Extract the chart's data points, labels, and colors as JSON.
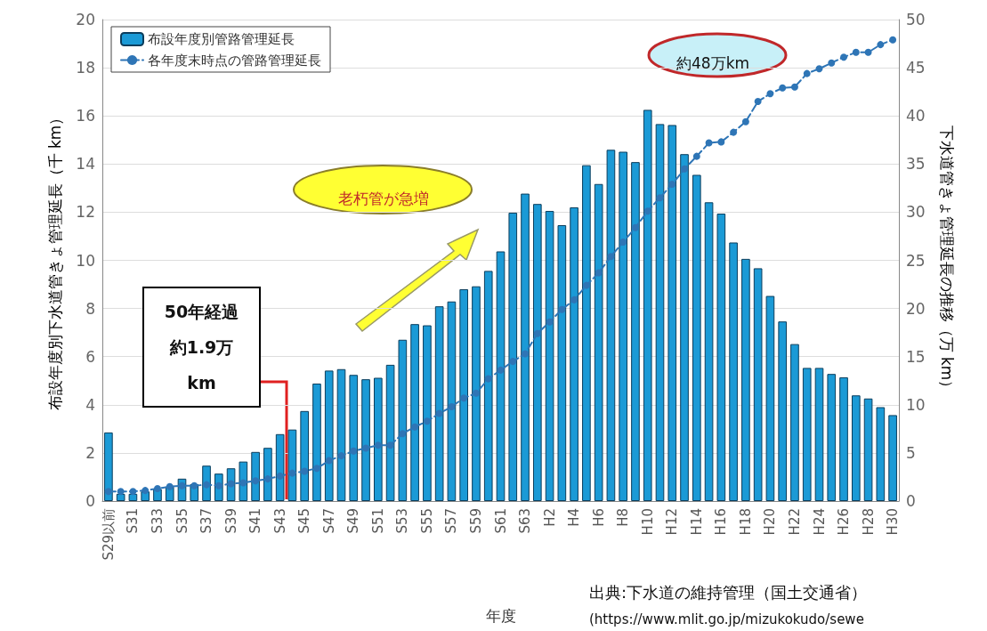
{
  "chart_data": {
    "type": "bar",
    "xlabel": "年度",
    "ylabel": "布設年度別下水道管きょ管理延長（千 km）",
    "y2label": "下水道管きょ管理延長の推移（万 km）",
    "categories": [
      "S29以前",
      null,
      "S31",
      null,
      "S33",
      null,
      "S35",
      null,
      "S37",
      null,
      "S39",
      null,
      "S41",
      null,
      "S43",
      null,
      "S45",
      null,
      "S47",
      null,
      "S49",
      null,
      "S51",
      null,
      "S53",
      null,
      "S55",
      null,
      "S57",
      null,
      "S59",
      null,
      "S61",
      null,
      "S63",
      null,
      "H2",
      null,
      "H4",
      null,
      "H6",
      null,
      "H8",
      null,
      "H10",
      null,
      "H12",
      null,
      "H14",
      null,
      "H16",
      null,
      "H18",
      null,
      "H20",
      null,
      "H22",
      null,
      "H24",
      null,
      "H26",
      null,
      "H28",
      null,
      "H30"
    ],
    "series": [
      {
        "name": "布設年度別管路管理延長",
        "color": "#1b9ad6",
        "values": [
          2.85,
          0.3,
          0.3,
          0.4,
          0.5,
          0.6,
          0.93,
          0.7,
          1.47,
          1.14,
          1.36,
          1.64,
          2.04,
          2.21,
          2.78,
          2.97,
          3.74,
          4.88,
          5.42,
          5.48,
          5.24,
          5.06,
          5.12,
          5.66,
          6.7,
          7.35,
          7.3,
          8.09,
          8.29,
          8.8,
          8.92,
          9.56,
          10.37,
          11.98,
          12.77,
          12.34,
          12.05,
          11.46,
          12.2,
          13.95,
          13.17,
          14.59,
          14.51,
          14.08,
          16.25,
          15.66,
          15.62,
          14.41,
          13.55,
          12.41,
          11.94,
          10.74,
          10.06,
          9.67,
          8.52,
          7.46,
          6.52,
          5.53,
          5.53,
          5.28,
          5.14,
          4.39,
          4.26,
          3.9,
          3.57
        ]
      },
      {
        "name": "各年度末時点の管路管理延長",
        "type": "line",
        "axis": "y2",
        "color": "#2e75b6",
        "marker": "circle",
        "line_style": "dashed",
        "values": [
          1.0,
          1.0,
          1.0,
          1.1,
          1.3,
          1.5,
          1.6,
          1.6,
          1.7,
          1.6,
          1.8,
          1.9,
          2.1,
          2.3,
          2.6,
          2.9,
          3.1,
          3.4,
          4.2,
          4.7,
          5.2,
          5.5,
          5.8,
          5.8,
          7.0,
          7.7,
          8.3,
          9.1,
          9.8,
          10.7,
          11.2,
          12.7,
          13.6,
          14.5,
          15.3,
          17.4,
          18.6,
          19.9,
          20.9,
          22.4,
          23.7,
          25.4,
          26.9,
          28.4,
          30.1,
          31.5,
          32.9,
          34.5,
          35.8,
          37.2,
          37.3,
          38.3,
          39.4,
          41.5,
          42.3,
          42.9,
          43.0,
          44.4,
          44.9,
          45.5,
          46.1,
          46.6,
          46.6,
          47.4,
          47.9
        ]
      }
    ],
    "ylim": [
      0,
      20
    ],
    "yticks": [
      0,
      2,
      4,
      6,
      8,
      10,
      12,
      14,
      16,
      18,
      20
    ],
    "y2lim": [
      0,
      50
    ],
    "y2ticks": [
      0,
      5,
      10,
      15,
      20,
      25,
      30,
      35,
      40,
      45,
      50
    ],
    "grid": "y",
    "legend": "top left",
    "annotations": [
      "50年経過約1.9万km",
      "老朽管が急増",
      "約48万km",
      "出典:下水道の維持管理（国土交通省）",
      "(https://www.mlit.go.jp/mizukokudo/sewe"
    ]
  }
}
